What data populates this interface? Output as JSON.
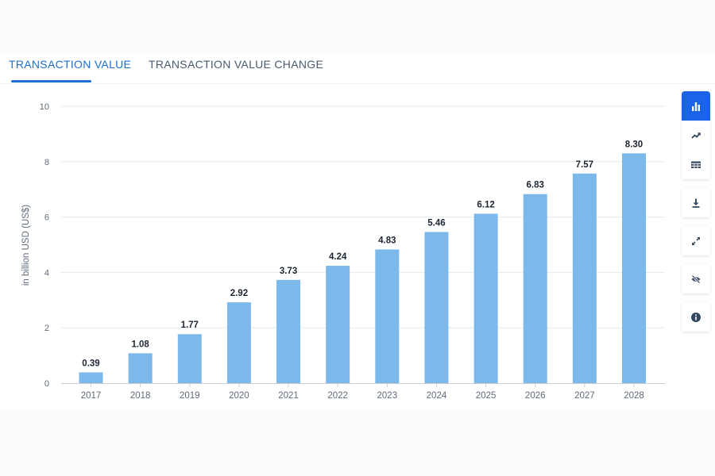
{
  "tabs": [
    {
      "label": "TRANSACTION VALUE"
    },
    {
      "label": "TRANSACTION VALUE CHANGE"
    }
  ],
  "toolbar": {
    "buttons": [
      {
        "icon": "bar-chart-icon",
        "active": true
      },
      {
        "icon": "line-chart-icon",
        "active": false
      },
      {
        "icon": "table-icon",
        "active": false
      },
      {
        "icon": "download-icon",
        "active": false
      },
      {
        "icon": "fullscreen-icon",
        "active": false
      },
      {
        "icon": "hide-icon",
        "active": false
      },
      {
        "icon": "info-icon",
        "active": false
      }
    ]
  },
  "colors": {
    "bar": "#7cb9ea",
    "accent": "#1d6fd1",
    "active_button": "#1a64e8"
  },
  "chart_data": {
    "type": "bar",
    "categories": [
      "2017",
      "2018",
      "2019",
      "2020",
      "2021",
      "2022",
      "2023",
      "2024",
      "2025",
      "2026",
      "2027",
      "2028"
    ],
    "values": [
      0.39,
      1.08,
      1.77,
      2.92,
      3.73,
      4.24,
      4.83,
      5.46,
      6.12,
      6.83,
      7.57,
      8.3
    ],
    "value_labels": [
      "0.39",
      "1.08",
      "1.77",
      "2.92",
      "3.73",
      "4.24",
      "4.83",
      "5.46",
      "6.12",
      "6.83",
      "7.57",
      "8.30"
    ],
    "yticks": [
      "0",
      "2",
      "4",
      "6",
      "8",
      "10"
    ],
    "ylabel": "in billion USD (US$)",
    "xlabel": "",
    "title": "",
    "ylim": [
      0,
      10
    ],
    "grid": true
  }
}
